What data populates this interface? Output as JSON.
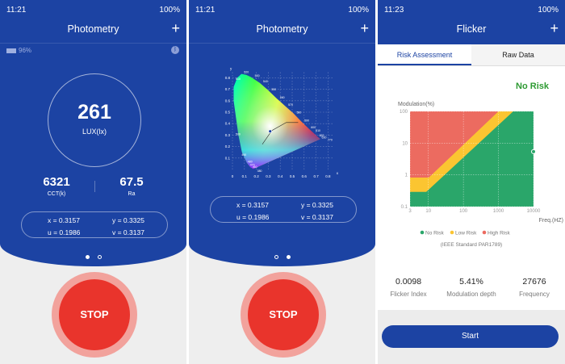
{
  "status": [
    {
      "time": "11:21",
      "battery": "100%"
    },
    {
      "time": "11:21",
      "battery": "100%"
    },
    {
      "time": "11:23",
      "battery": "100%"
    }
  ],
  "photometry": {
    "title": "Photometry",
    "add": "+",
    "device_battery": "96%",
    "bluetooth": "ᛒ",
    "lux": "261",
    "lux_unit": "LUX(lx)",
    "cct": "6321",
    "cct_label": "CCT(k)",
    "ra": "67.5",
    "ra_label": "Ra",
    "x": "x = 0.3157",
    "y": "y = 0.3325",
    "u": "u = 0.1986",
    "v": "v = 0.3137",
    "stop": "STOP"
  },
  "cie": {
    "x_ticks": [
      "0",
      "0.1",
      "0.2",
      "0.3",
      "0.4",
      "0.5",
      "0.6",
      "0.7",
      "0.8"
    ],
    "y_ticks": [
      "0.1",
      "0.2",
      "0.3",
      "0.4",
      "0.5",
      "0.6",
      "0.7",
      "0.8"
    ],
    "x_label": "x",
    "y_label": "y",
    "wavelengths": [
      "520",
      "530",
      "540",
      "550",
      "560",
      "570",
      "580",
      "590",
      "600",
      "610",
      "620",
      "630",
      "770",
      "510",
      "500",
      "490",
      "480",
      "470",
      "460",
      "380"
    ],
    "point": [
      0.3157,
      0.3325
    ]
  },
  "flicker": {
    "title": "Flicker",
    "add": "+",
    "tabs": [
      "Risk Assessment",
      "Raw Data"
    ],
    "risk": "No Risk",
    "flicker_index": "0.0098",
    "flicker_index_label": "Flicker Index",
    "modulation": "5.41%",
    "modulation_label": "Modulation depth",
    "frequency": "27676",
    "frequency_label": "Frequency",
    "start": "Start",
    "standard": "(IEEE Standard PAR1789)",
    "colors": {
      "no_risk": "#2aa66a",
      "low_risk": "#fbc531",
      "high_risk": "#ec6b60",
      "brand": "#1c43a3"
    }
  },
  "chart_data": {
    "type": "area",
    "ylabel": "Modulation(%)",
    "xlabel": "Freq.(HZ)",
    "xscale": "log",
    "yscale": "log",
    "xlim": [
      3,
      10000
    ],
    "ylim": [
      0.1,
      100
    ],
    "x_ticks": [
      "3",
      "10",
      "100",
      "1000",
      "10000"
    ],
    "y_ticks": [
      "0.1",
      "1",
      "10",
      "100"
    ],
    "grid": true,
    "legend": "bottom",
    "series": [
      {
        "name": "No Risk",
        "boundary": [
          [
            3,
            0.29
          ],
          [
            8.7,
            0.29
          ],
          [
            2630,
            100
          ]
        ]
      },
      {
        "name": "Low Risk",
        "boundary": [
          [
            3,
            0.82
          ],
          [
            10.3,
            0.82
          ],
          [
            1000,
            100
          ]
        ]
      },
      {
        "name": "High Risk",
        "boundary": [
          [
            3,
            100
          ],
          [
            10000,
            100
          ]
        ]
      }
    ],
    "measurement": {
      "frequency": 10000,
      "modulation": 5.41
    }
  }
}
